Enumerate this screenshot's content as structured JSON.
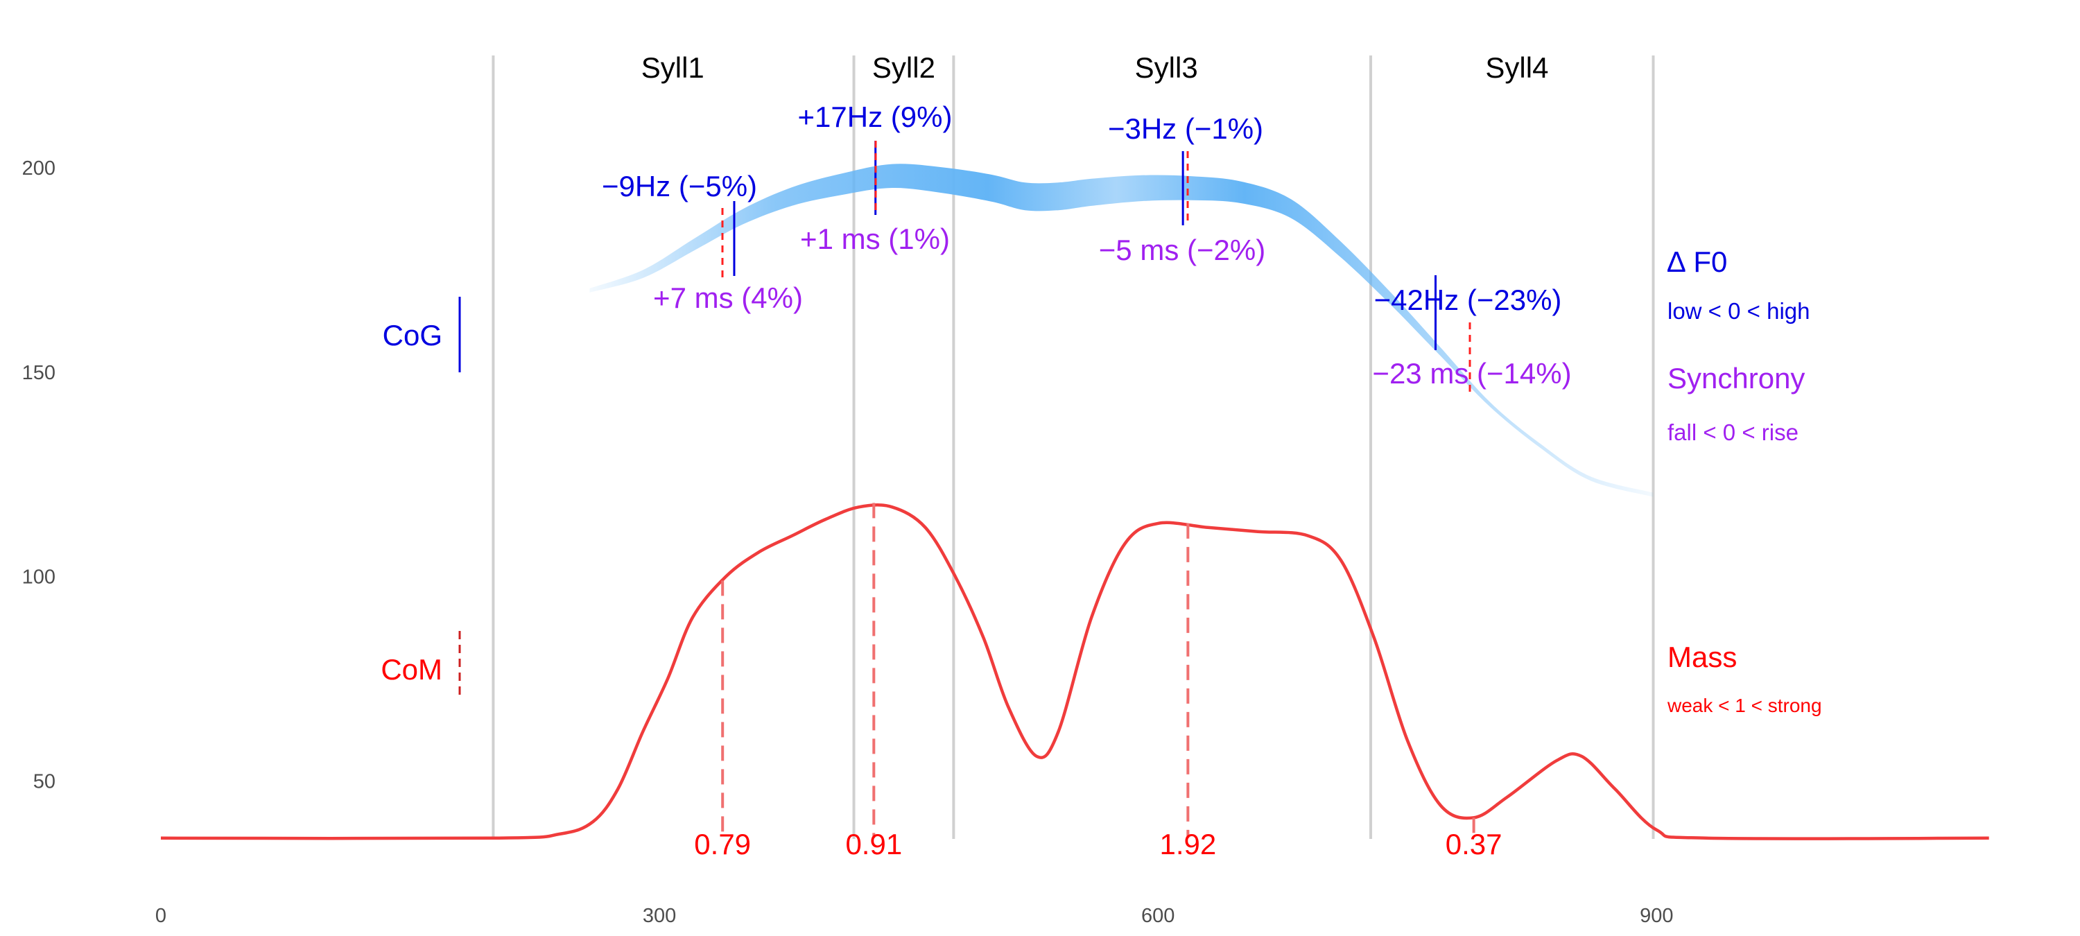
{
  "chart_data": {
    "type": "line",
    "xlim": [
      0,
      1100
    ],
    "ylim": [
      30,
      210
    ],
    "x_ticks": [
      {
        "value": 0,
        "label": "0"
      },
      {
        "value": 300,
        "label": "300"
      },
      {
        "value": 600,
        "label": "600"
      },
      {
        "value": 900,
        "label": "900"
      }
    ],
    "y_ticks": [
      {
        "value": 50,
        "label": "50"
      },
      {
        "value": 100,
        "label": "100"
      },
      {
        "value": 150,
        "label": "150"
      },
      {
        "value": 200,
        "label": "200"
      }
    ],
    "grid": false,
    "syllable_boundaries": [
      200,
      417,
      477,
      728,
      898
    ],
    "syllables": [
      {
        "label": "Syll1",
        "x": 308
      },
      {
        "label": "Syll2",
        "x": 447
      },
      {
        "label": "Syll3",
        "x": 605
      },
      {
        "label": "Syll4",
        "x": 816
      }
    ],
    "f0_curve": {
      "name": "F0",
      "color": "#64b5f6",
      "points": [
        [
          258,
          170
        ],
        [
          290,
          174
        ],
        [
          320,
          181
        ],
        [
          350,
          188
        ],
        [
          380,
          193
        ],
        [
          410,
          196
        ],
        [
          440,
          198
        ],
        [
          470,
          197
        ],
        [
          500,
          195
        ],
        [
          520,
          193
        ],
        [
          540,
          193
        ],
        [
          560,
          194
        ],
        [
          590,
          195
        ],
        [
          620,
          195
        ],
        [
          650,
          194
        ],
        [
          680,
          190
        ],
        [
          710,
          180
        ],
        [
          740,
          168
        ],
        [
          770,
          155
        ],
        [
          800,
          142
        ],
        [
          830,
          132
        ],
        [
          860,
          124
        ],
        [
          898,
          120
        ]
      ]
    },
    "mass_curve": {
      "name": "Mass",
      "color": "#f03c3c",
      "points": [
        [
          0,
          36
        ],
        [
          200,
          36
        ],
        [
          240,
          37
        ],
        [
          260,
          40
        ],
        [
          275,
          48
        ],
        [
          290,
          62
        ],
        [
          305,
          75
        ],
        [
          320,
          90
        ],
        [
          340,
          100
        ],
        [
          360,
          106
        ],
        [
          380,
          110
        ],
        [
          400,
          114
        ],
        [
          420,
          117
        ],
        [
          440,
          117
        ],
        [
          460,
          112
        ],
        [
          478,
          100
        ],
        [
          495,
          85
        ],
        [
          510,
          68
        ],
        [
          527,
          56
        ],
        [
          540,
          62
        ],
        [
          560,
          90
        ],
        [
          580,
          108
        ],
        [
          600,
          113
        ],
        [
          630,
          112
        ],
        [
          660,
          111
        ],
        [
          690,
          110
        ],
        [
          710,
          104
        ],
        [
          730,
          85
        ],
        [
          750,
          60
        ],
        [
          770,
          44
        ],
        [
          790,
          41
        ],
        [
          810,
          46
        ],
        [
          840,
          55
        ],
        [
          855,
          56
        ],
        [
          875,
          48
        ],
        [
          900,
          38
        ],
        [
          930,
          36
        ],
        [
          1100,
          36
        ]
      ]
    },
    "f0_markers": [
      {
        "label": "−9Hz (−5%)",
        "cog_x": 345,
        "cog_y": 182
      },
      {
        "label": "+17Hz (9%)",
        "cog_x": 430,
        "cog_y": 197
      },
      {
        "label": "−3Hz (−1%)",
        "cog_x": 615,
        "cog_y": 195
      },
      {
        "label": "−42Hz (−23%)",
        "cog_x": 767,
        "cog_y": 165
      }
    ],
    "synchrony_labels": [
      {
        "label": "+7 ms (4%)"
      },
      {
        "label": "+1 ms (1%)"
      },
      {
        "label": "−5 ms (−2%)"
      },
      {
        "label": "−23 ms (−14%)"
      }
    ],
    "com_markers": [
      {
        "x": 338,
        "y": 99,
        "label": "0.79"
      },
      {
        "x": 429,
        "y": 118,
        "label": "0.91"
      },
      {
        "x": 618,
        "y": 113,
        "label": "1.92"
      },
      {
        "x": 790,
        "y": 41,
        "label": "0.37"
      }
    ],
    "side_labels": {
      "cog": "CoG",
      "com": "CoM"
    },
    "legend": {
      "f0_title": "∆ F0",
      "f0_sub": "low < 0 < high",
      "syn_title": "Synchrony",
      "syn_sub": "fall < 0 < rise",
      "mass_title": "Mass",
      "mass_sub": "weak < 1 < strong"
    },
    "colors": {
      "f0_text": "#0000e0",
      "synchrony_text": "#a020f0",
      "mass_text": "#ff0000",
      "mass_line": "#f03c3c",
      "mass_dash": "#f07070",
      "f0_fill": "#64b5f6",
      "boundary": "#d0d0d0"
    }
  }
}
